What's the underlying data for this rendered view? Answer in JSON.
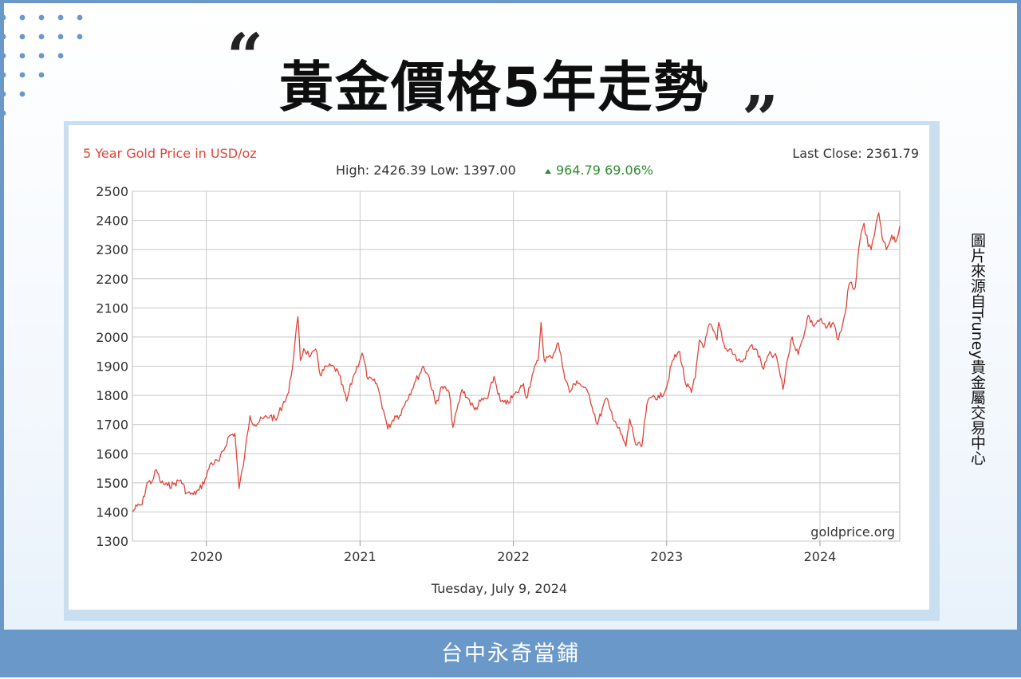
{
  "headline": {
    "title": "黃金價格5年走勢",
    "quote_open": "“",
    "quote_close": "”"
  },
  "side_credit": "圖片來源自Truney貴金屬交易中心",
  "footer": "台中永奇當鋪",
  "colors": {
    "frame_border": "#6a98c9",
    "line": "#e0453a",
    "title_red": "#e0453a",
    "change_green": "#2e8b2e",
    "grid": "#c8c8c8"
  },
  "chart_data": {
    "type": "line",
    "title": "5 Year Gold Price in USD/oz",
    "last_close_label": "Last Close: 2361.79",
    "stats_label": "High: 2426.39 Low: 1397.00",
    "change_label": "964.79 69.06%",
    "change_icon": "up-triangle-icon",
    "watermark": "goldprice.org",
    "date_label": "Tuesday, July 9, 2024",
    "x_start": "2019-07-09",
    "x_end": "2024-07-09",
    "ylim": [
      1300,
      2500
    ],
    "yticks": [
      1300,
      1400,
      1500,
      1600,
      1700,
      1800,
      1900,
      2000,
      2100,
      2200,
      2300,
      2400,
      2500
    ],
    "xticks": [
      {
        "label": "2020",
        "date": "2020-01-01"
      },
      {
        "label": "2021",
        "date": "2021-01-01"
      },
      {
        "label": "2022",
        "date": "2022-01-01"
      },
      {
        "label": "2023",
        "date": "2023-01-01"
      },
      {
        "label": "2024",
        "date": "2024-01-01"
      }
    ],
    "grid": true,
    "series": [
      {
        "values": [
          [
            "2019-07-09",
            1400
          ],
          [
            "2019-07-20",
            1420
          ],
          [
            "2019-08-01",
            1425
          ],
          [
            "2019-08-13",
            1500
          ],
          [
            "2019-08-25",
            1505
          ],
          [
            "2019-09-04",
            1545
          ],
          [
            "2019-09-15",
            1500
          ],
          [
            "2019-10-01",
            1490
          ],
          [
            "2019-10-15",
            1495
          ],
          [
            "2019-11-01",
            1510
          ],
          [
            "2019-11-15",
            1465
          ],
          [
            "2019-12-01",
            1460
          ],
          [
            "2019-12-15",
            1475
          ],
          [
            "2020-01-01",
            1520
          ],
          [
            "2020-01-10",
            1565
          ],
          [
            "2020-02-01",
            1575
          ],
          [
            "2020-02-24",
            1660
          ],
          [
            "2020-03-09",
            1670
          ],
          [
            "2020-03-19",
            1480
          ],
          [
            "2020-04-01",
            1590
          ],
          [
            "2020-04-14",
            1730
          ],
          [
            "2020-04-25",
            1700
          ],
          [
            "2020-05-15",
            1720
          ],
          [
            "2020-06-01",
            1730
          ],
          [
            "2020-06-15",
            1715
          ],
          [
            "2020-07-01",
            1770
          ],
          [
            "2020-07-15",
            1810
          ],
          [
            "2020-07-27",
            1935
          ],
          [
            "2020-08-06",
            2070
          ],
          [
            "2020-08-12",
            1920
          ],
          [
            "2020-08-20",
            1960
          ],
          [
            "2020-09-05",
            1935
          ],
          [
            "2020-09-20",
            1950
          ],
          [
            "2020-09-28",
            1870
          ],
          [
            "2020-10-15",
            1900
          ],
          [
            "2020-11-01",
            1895
          ],
          [
            "2020-11-12",
            1870
          ],
          [
            "2020-11-30",
            1780
          ],
          [
            "2020-12-15",
            1860
          ],
          [
            "2021-01-06",
            1945
          ],
          [
            "2021-01-20",
            1855
          ],
          [
            "2021-02-10",
            1840
          ],
          [
            "2021-03-01",
            1730
          ],
          [
            "2021-03-08",
            1685
          ],
          [
            "2021-03-25",
            1730
          ],
          [
            "2021-04-05",
            1730
          ],
          [
            "2021-04-20",
            1780
          ],
          [
            "2021-05-10",
            1840
          ],
          [
            "2021-06-01",
            1900
          ],
          [
            "2021-06-15",
            1860
          ],
          [
            "2021-06-30",
            1770
          ],
          [
            "2021-07-15",
            1830
          ],
          [
            "2021-08-01",
            1810
          ],
          [
            "2021-08-10",
            1690
          ],
          [
            "2021-09-01",
            1820
          ],
          [
            "2021-09-15",
            1790
          ],
          [
            "2021-10-01",
            1750
          ],
          [
            "2021-10-15",
            1780
          ],
          [
            "2021-11-01",
            1790
          ],
          [
            "2021-11-16",
            1865
          ],
          [
            "2021-12-01",
            1780
          ],
          [
            "2021-12-15",
            1770
          ],
          [
            "2022-01-10",
            1810
          ],
          [
            "2022-01-25",
            1840
          ],
          [
            "2022-02-01",
            1790
          ],
          [
            "2022-02-15",
            1870
          ],
          [
            "2022-03-01",
            1920
          ],
          [
            "2022-03-08",
            2050
          ],
          [
            "2022-03-15",
            1925
          ],
          [
            "2022-04-01",
            1930
          ],
          [
            "2022-04-18",
            1980
          ],
          [
            "2022-05-01",
            1880
          ],
          [
            "2022-05-15",
            1810
          ],
          [
            "2022-06-01",
            1850
          ],
          [
            "2022-06-15",
            1830
          ],
          [
            "2022-07-01",
            1800
          ],
          [
            "2022-07-20",
            1700
          ],
          [
            "2022-08-10",
            1790
          ],
          [
            "2022-08-20",
            1750
          ],
          [
            "2022-09-01",
            1710
          ],
          [
            "2022-09-26",
            1625
          ],
          [
            "2022-10-05",
            1720
          ],
          [
            "2022-10-20",
            1630
          ],
          [
            "2022-11-03",
            1625
          ],
          [
            "2022-11-15",
            1770
          ],
          [
            "2022-12-01",
            1800
          ],
          [
            "2022-12-15",
            1790
          ],
          [
            "2023-01-01",
            1830
          ],
          [
            "2023-01-15",
            1920
          ],
          [
            "2023-02-01",
            1950
          ],
          [
            "2023-02-15",
            1840
          ],
          [
            "2023-03-01",
            1810
          ],
          [
            "2023-03-10",
            1860
          ],
          [
            "2023-03-20",
            1990
          ],
          [
            "2023-04-01",
            1970
          ],
          [
            "2023-04-13",
            2045
          ],
          [
            "2023-05-01",
            1990
          ],
          [
            "2023-05-05",
            2050
          ],
          [
            "2023-05-20",
            1960
          ],
          [
            "2023-06-01",
            1960
          ],
          [
            "2023-06-20",
            1920
          ],
          [
            "2023-07-01",
            1915
          ],
          [
            "2023-07-20",
            1970
          ],
          [
            "2023-08-01",
            1960
          ],
          [
            "2023-08-20",
            1890
          ],
          [
            "2023-09-01",
            1940
          ],
          [
            "2023-09-20",
            1930
          ],
          [
            "2023-10-05",
            1820
          ],
          [
            "2023-10-15",
            1920
          ],
          [
            "2023-10-27",
            2000
          ],
          [
            "2023-11-10",
            1940
          ],
          [
            "2023-11-20",
            1990
          ],
          [
            "2023-12-04",
            2075
          ],
          [
            "2023-12-15",
            2040
          ],
          [
            "2024-01-01",
            2060
          ],
          [
            "2024-01-15",
            2030
          ],
          [
            "2024-02-01",
            2050
          ],
          [
            "2024-02-14",
            1990
          ],
          [
            "2024-03-01",
            2080
          ],
          [
            "2024-03-10",
            2180
          ],
          [
            "2024-03-25",
            2170
          ],
          [
            "2024-04-05",
            2330
          ],
          [
            "2024-04-15",
            2390
          ],
          [
            "2024-04-25",
            2310
          ],
          [
            "2024-05-02",
            2300
          ],
          [
            "2024-05-20",
            2426
          ],
          [
            "2024-05-28",
            2340
          ],
          [
            "2024-06-07",
            2300
          ],
          [
            "2024-06-20",
            2350
          ],
          [
            "2024-07-01",
            2330
          ],
          [
            "2024-07-09",
            2380
          ]
        ]
      }
    ]
  }
}
